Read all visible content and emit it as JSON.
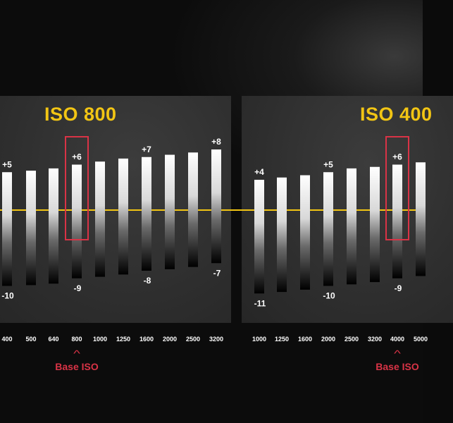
{
  "colors": {
    "accent": "#f2c514",
    "highlight": "#d93346",
    "text": "#ffffff",
    "panel": "#333333",
    "background": "#0b0b0b"
  },
  "panels": {
    "left_title": "ISO 800",
    "right_title": "ISO 400",
    "left_base_label": "Base ISO",
    "right_base_label": "Base ISO",
    "base_marker": "^"
  },
  "chart_data": [
    {
      "type": "bar",
      "title": "ISO 800",
      "categories": [
        "400",
        "500",
        "640",
        "800",
        "1000",
        "1250",
        "1600",
        "2000",
        "2500",
        "3200"
      ],
      "series": [
        {
          "values": [
            5,
            5.2,
            5.5,
            6,
            6.4,
            6.8,
            7,
            7.3,
            7.6,
            8
          ],
          "labels": [
            "+5",
            "",
            "",
            "+6",
            "",
            "",
            "+7",
            "",
            "",
            "+8"
          ]
        },
        {
          "values": [
            -10,
            -9.9,
            -9.7,
            -9,
            -8.8,
            -8.5,
            -8,
            -7.8,
            -7.5,
            -7
          ],
          "labels": [
            "-10",
            "",
            "",
            "-9",
            "",
            "",
            "-8",
            "",
            "",
            "-7"
          ]
        }
      ],
      "highlight_category": "800",
      "annotation": "Base ISO"
    },
    {
      "type": "bar",
      "title": "ISO 400",
      "categories": [
        "1000",
        "1250",
        "1600",
        "2000",
        "2500",
        "3200",
        "4000",
        "5000"
      ],
      "series": [
        {
          "values": [
            4,
            4.3,
            4.6,
            5,
            5.5,
            5.7,
            6,
            6.3
          ],
          "labels": [
            "+4",
            "",
            "",
            "+5",
            "",
            "",
            "+6",
            ""
          ]
        },
        {
          "values": [
            -11,
            -10.8,
            -10.5,
            -10,
            -9.8,
            -9.5,
            -9,
            -8.7
          ],
          "labels": [
            "-11",
            "",
            "",
            "-10",
            "",
            "",
            "-9",
            ""
          ]
        }
      ],
      "highlight_category": "4000",
      "annotation": "Base ISO"
    }
  ]
}
